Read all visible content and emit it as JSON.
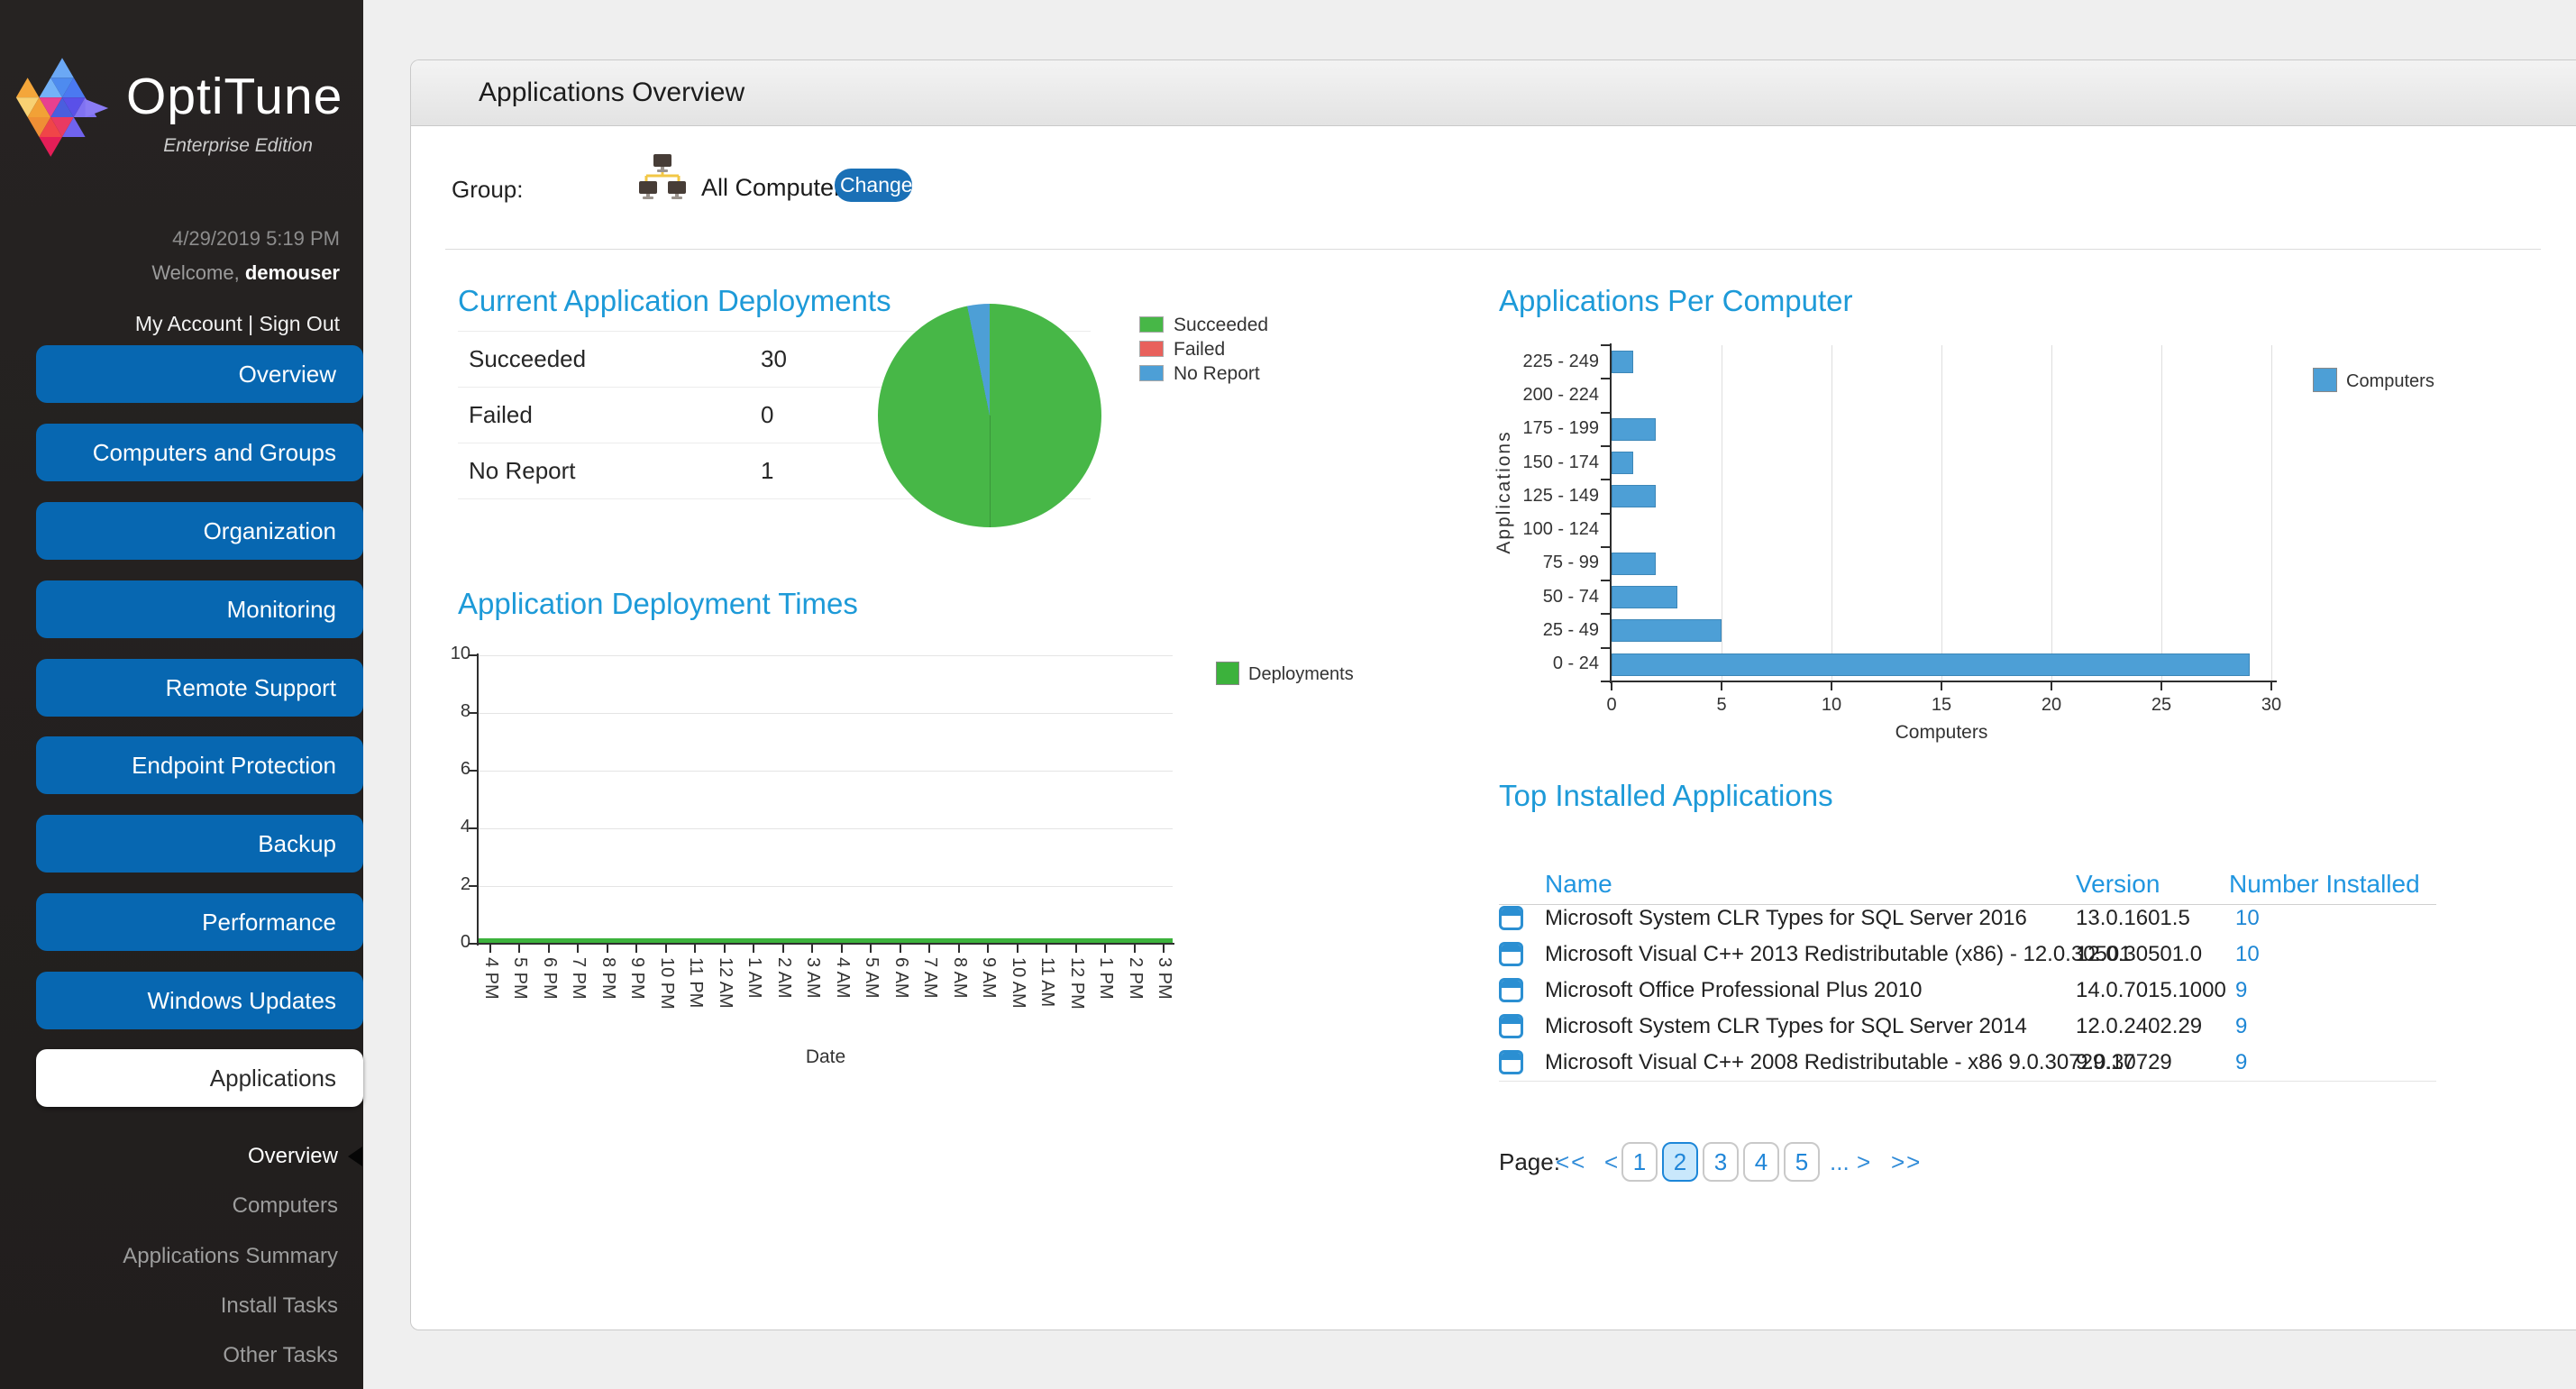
{
  "sidebar": {
    "brand_name": "OptiTune",
    "brand_edition": "Enterprise Edition",
    "datetime": "4/29/2019 5:19 PM",
    "welcome_prefix": "Welcome,",
    "welcome_user": "demouser",
    "my_account": "My Account",
    "link_separator": "|",
    "sign_out": "Sign Out",
    "nav": [
      {
        "label": "Overview"
      },
      {
        "label": "Computers and Groups"
      },
      {
        "label": "Organization"
      },
      {
        "label": "Monitoring"
      },
      {
        "label": "Remote Support"
      },
      {
        "label": "Endpoint Protection"
      },
      {
        "label": "Backup"
      },
      {
        "label": "Performance"
      },
      {
        "label": "Windows Updates"
      },
      {
        "label": "Applications",
        "active": true
      }
    ],
    "subnav": [
      {
        "label": "Overview",
        "active": true
      },
      {
        "label": "Computers"
      },
      {
        "label": "Applications Summary"
      },
      {
        "label": "Install Tasks"
      },
      {
        "label": "Other Tasks"
      }
    ]
  },
  "header": {
    "title": "Applications Overview"
  },
  "group_bar": {
    "label": "Group:",
    "value": "All Computers",
    "change_button": "Change"
  },
  "sections": {
    "deployments_title": "Current Application Deployments",
    "times_title": "Application Deployment Times",
    "per_computer_title": "Applications Per Computer",
    "top_installed_title": "Top Installed Applications"
  },
  "chart_data": [
    {
      "type": "pie",
      "title": "Current Application Deployments",
      "labels": [
        "Succeeded",
        "Failed",
        "No Report"
      ],
      "values": [
        30,
        0,
        1
      ],
      "colors": [
        "#47b747",
        "#e8615c",
        "#4d9fd6"
      ],
      "legend_position": "right"
    },
    {
      "type": "line",
      "title": "Application Deployment Times",
      "x": [
        "4 PM",
        "5 PM",
        "6 PM",
        "7 PM",
        "8 PM",
        "9 PM",
        "10 PM",
        "11 PM",
        "12 AM",
        "1 AM",
        "2 AM",
        "3 AM",
        "4 AM",
        "5 AM",
        "6 AM",
        "7 AM",
        "8 AM",
        "9 AM",
        "10 AM",
        "11 AM",
        "12 PM",
        "1 PM",
        "2 PM",
        "3 PM"
      ],
      "xlabel": "Date",
      "ylim": [
        0,
        10
      ],
      "yticks": [
        0,
        2,
        4,
        6,
        8,
        10
      ],
      "grid": "horizontal",
      "legend_position": "right",
      "series": [
        {
          "name": "Deployments",
          "color": "#3cb23c",
          "values": [
            0,
            0,
            0,
            0,
            0,
            0,
            0,
            0,
            0,
            0,
            0,
            0,
            0,
            0,
            0,
            0,
            0,
            0,
            0,
            0,
            0,
            0,
            0,
            0
          ]
        }
      ]
    },
    {
      "type": "bar",
      "orientation": "horizontal",
      "title": "Applications Per Computer",
      "categories": [
        "225 - 249",
        "200 - 224",
        "175 - 199",
        "150 - 174",
        "125 - 149",
        "100 - 124",
        "75 - 99",
        "50 - 74",
        "25 - 49",
        "0 - 24"
      ],
      "values": [
        1,
        0,
        2,
        1,
        2,
        0,
        2,
        3,
        5,
        29
      ],
      "xlabel": "Computers",
      "ylabel": "Applications",
      "xlim": [
        0,
        30
      ],
      "xticks": [
        0,
        5,
        10,
        15,
        20,
        25,
        30
      ],
      "grid": "vertical",
      "legend_position": "right",
      "series_name": "Computers",
      "color": "#4d9fd6"
    }
  ],
  "top_installed": {
    "columns": [
      "Name",
      "Version",
      "Number Installed"
    ],
    "rows": [
      {
        "name": "Microsoft System CLR Types for SQL Server 2016",
        "version": "13.0.1601.5",
        "count": "10"
      },
      {
        "name": "Microsoft Visual C++ 2013 Redistributable (x86) - 12.0.30501",
        "version": "12.0.30501.0",
        "count": "10"
      },
      {
        "name": "Microsoft Office Professional Plus 2010",
        "version": "14.0.7015.1000",
        "count": "9"
      },
      {
        "name": "Microsoft System CLR Types for SQL Server 2014",
        "version": "12.0.2402.29",
        "count": "9"
      },
      {
        "name": "Microsoft Visual C++ 2008 Redistributable - x86 9.0.30729.17",
        "version": "9.0.30729",
        "count": "9"
      }
    ]
  },
  "pagination": {
    "label": "Page:",
    "first": "<<",
    "prev": "<",
    "pages": [
      "1",
      "2",
      "3",
      "4",
      "5"
    ],
    "active_page": "2",
    "ellipsis": "...",
    "next": ">",
    "last": ">>"
  },
  "colors": {
    "nav_blue": "#0767b1",
    "accent_heading": "#1d9ad8",
    "link_blue": "#1e87d5",
    "success_green": "#47b747",
    "fail_red": "#e8615c",
    "chart_blue": "#4d9fd6",
    "change_button_blue": "#1a70b6",
    "active_page_bg": "#c9e8fc"
  }
}
